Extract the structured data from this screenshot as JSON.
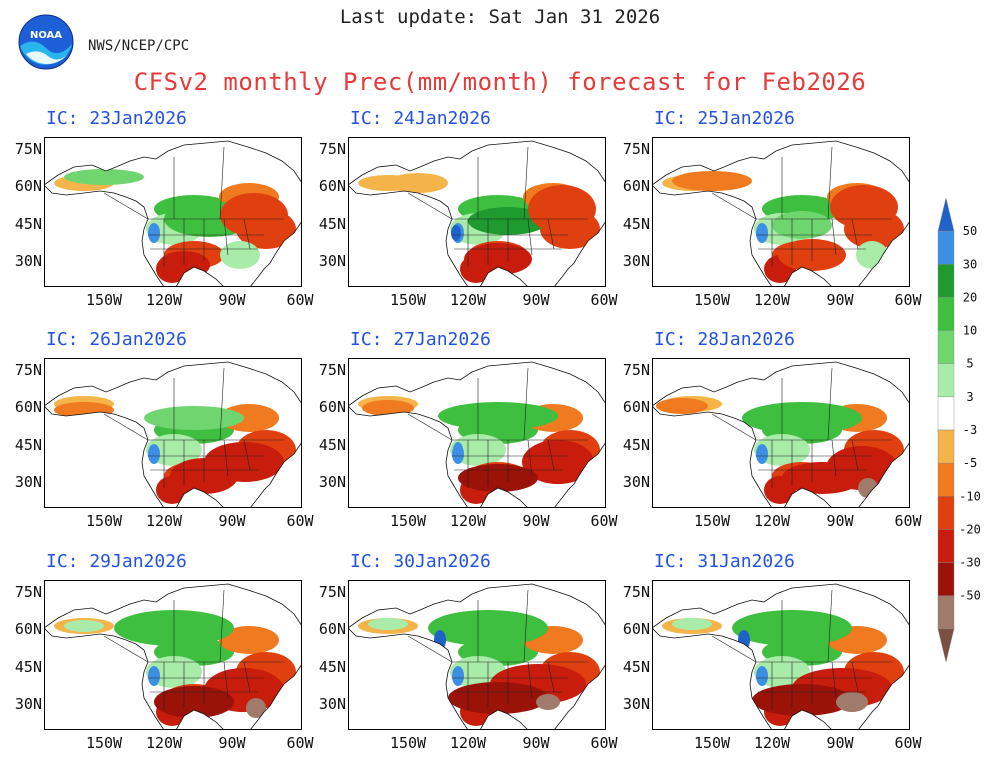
{
  "header": {
    "last_update": "Last update: Sat Jan 31 2026",
    "agency": "NWS/NCEP/CPC",
    "title": "CFSv2 monthly Prec(mm/month) forecast for Feb2026",
    "logo_text": "NOAA"
  },
  "axes": {
    "lat_labels": [
      "75N",
      "60N",
      "45N",
      "30N"
    ],
    "lon_labels": [
      "150W",
      "120W",
      "90W",
      "60W"
    ]
  },
  "panels": [
    {
      "ic": "IC: 23Jan2026"
    },
    {
      "ic": "IC: 24Jan2026"
    },
    {
      "ic": "IC: 25Jan2026"
    },
    {
      "ic": "IC: 26Jan2026"
    },
    {
      "ic": "IC: 27Jan2026"
    },
    {
      "ic": "IC: 28Jan2026"
    },
    {
      "ic": "IC: 29Jan2026"
    },
    {
      "ic": "IC: 30Jan2026"
    },
    {
      "ic": "IC: 31Jan2026"
    }
  ],
  "colorbar": {
    "labels": [
      "50",
      "30",
      "20",
      "10",
      "5",
      "3",
      "-3",
      "-5",
      "-10",
      "-20",
      "-30",
      "-50"
    ],
    "colors": {
      "gt50": "#1f63c9",
      "30_50": "#3d8fe6",
      "20_30": "#1f9a2e",
      "10_20": "#3fbf3f",
      "5_10": "#6fd66f",
      "3_5": "#a9eca9",
      "neutral": "#ffffff",
      "m3_m5": "#f5b44a",
      "m5_m10": "#f07a1f",
      "m10_m20": "#e0400f",
      "m20_m30": "#c81c0c",
      "m30_m50": "#9a1208",
      "m50": "#a07a6a",
      "lt_m50": "#7a5040"
    }
  }
}
